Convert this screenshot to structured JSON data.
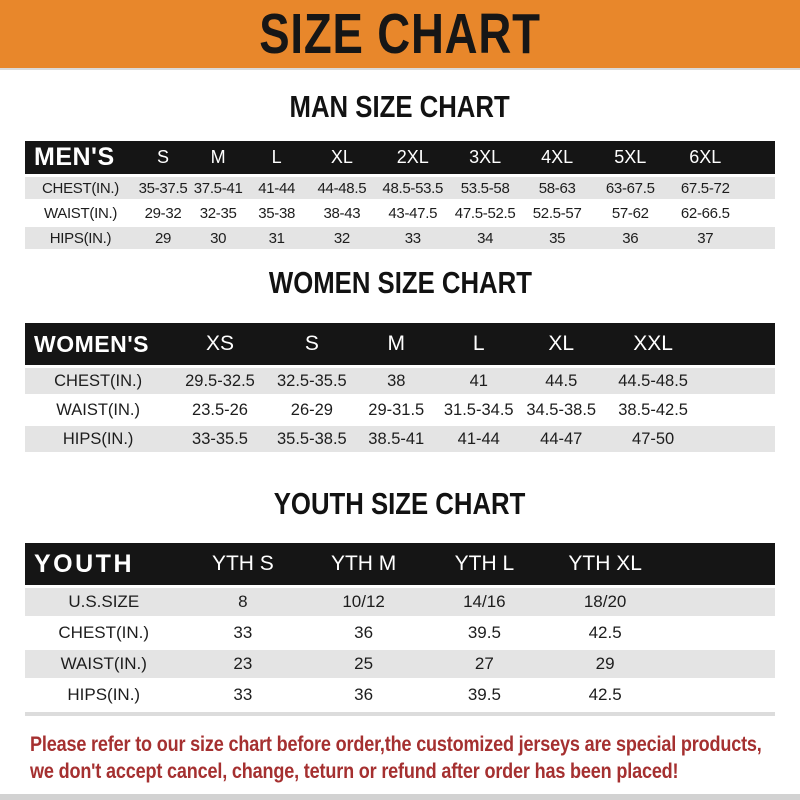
{
  "header": {
    "title": "SIZE CHART"
  },
  "sections": [
    {
      "title": "MAN SIZE CHART",
      "label": "MEN'S",
      "columns": [
        "S",
        "M",
        "L",
        "XL",
        "2XL",
        "3XL",
        "4XL",
        "5XL",
        "6XL"
      ],
      "rows": [
        {
          "label": "CHEST(IN.)",
          "values": [
            "35-37.5",
            "37.5-41",
            "41-44",
            "44-48.5",
            "48.5-53.5",
            "53.5-58",
            "58-63",
            "63-67.5",
            "67.5-72"
          ]
        },
        {
          "label": "WAIST(IN.)",
          "values": [
            "29-32",
            "32-35",
            "35-38",
            "38-43",
            "43-47.5",
            "47.5-52.5",
            "52.5-57",
            "57-62",
            "62-66.5"
          ]
        },
        {
          "label": "HIPS(IN.)",
          "values": [
            "29",
            "30",
            "31",
            "32",
            "33",
            "34",
            "35",
            "36",
            "37"
          ]
        }
      ]
    },
    {
      "title": "WOMEN SIZE CHART",
      "label": "WOMEN'S",
      "columns": [
        "XS",
        "S",
        "M",
        "L",
        "XL",
        "XXL"
      ],
      "rows": [
        {
          "label": "CHEST(IN.)",
          "values": [
            "29.5-32.5",
            "32.5-35.5",
            "38",
            "41",
            "44.5",
            "44.5-48.5"
          ]
        },
        {
          "label": "WAIST(IN.)",
          "values": [
            "23.5-26",
            "26-29",
            "29-31.5",
            "31.5-34.5",
            "34.5-38.5",
            "38.5-42.5"
          ]
        },
        {
          "label": "HIPS(IN.)",
          "values": [
            "33-35.5",
            "35.5-38.5",
            "38.5-41",
            "41-44",
            "44-47",
            "47-50"
          ]
        }
      ]
    },
    {
      "title": "YOUTH SIZE CHART",
      "label": "YOUTH",
      "columns": [
        "YTH S",
        "YTH M",
        "YTH L",
        "YTH XL"
      ],
      "rows": [
        {
          "label": "U.S.SIZE",
          "values": [
            "8",
            "10/12",
            "14/16",
            "18/20"
          ]
        },
        {
          "label": "CHEST(IN.)",
          "values": [
            "33",
            "36",
            "39.5",
            "42.5"
          ]
        },
        {
          "label": "WAIST(IN.)",
          "values": [
            "23",
            "25",
            "27",
            "29"
          ]
        },
        {
          "label": "HIPS(IN.)",
          "values": [
            "33",
            "36",
            "39.5",
            "42.5"
          ]
        }
      ]
    }
  ],
  "footer": {
    "line1": "Please refer to our size chart before order,the customized jerseys are special products,",
    "line2": "we don't accept cancel, change, teturn or refund after order has been placed!"
  },
  "colors": {
    "banner_orange": "#E8872B",
    "bar_black": "#151515",
    "row_gray": "#E4E4E4",
    "footer_red": "#A53030",
    "title_black": "#121212",
    "rule_gray": "#DCDCDC"
  }
}
